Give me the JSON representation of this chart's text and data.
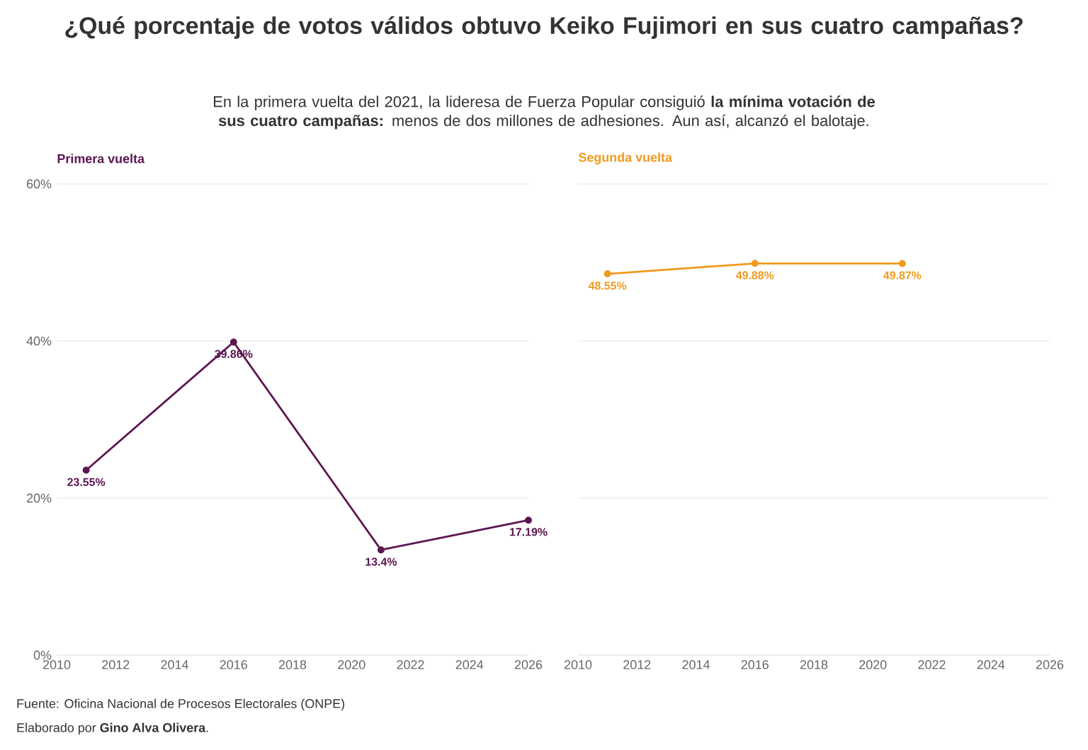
{
  "chart_data": [
    {
      "type": "line",
      "title": "¿Qué porcentaje de votos válidos obtuvo Keiko Fujimori en sus cuatro campañas?",
      "subtitle": "En la primera vuelta del 2021, la lideresa de Fuerza Popular consiguió **la mínima votación de sus cuatro campañas:** menos de dos millones de adhesiones. Aun así, alcanzó el balotaje.",
      "annotations": [
        "Fuente: Oficina Nacional de Procesos Electorales (ONPE)",
        "Elaborado por **Gino Alva Olivera**."
      ],
      "xlim": [
        2010,
        2026
      ],
      "xticks": [
        2010,
        2012,
        2014,
        2016,
        2018,
        2020,
        2022,
        2024,
        2026
      ],
      "ylim": [
        0,
        60
      ],
      "yticks": [
        {
          "value": 0,
          "label": "0%"
        },
        {
          "value": 20,
          "label": "20%"
        },
        {
          "value": 40,
          "label": "40%"
        },
        {
          "value": 60,
          "label": "60%"
        }
      ],
      "grid": "y",
      "marker": "circle",
      "line_style": "solid",
      "series": [
        {
          "name": "Primera vuelta",
          "color": "#5b1650",
          "x": [
            2011,
            2016,
            2021,
            2026
          ],
          "values": [
            23.55,
            39.86,
            13.4,
            17.19
          ],
          "value_labels": [
            "23.55%",
            "39.86%",
            "13.4%",
            "17.19%"
          ]
        }
      ]
    },
    {
      "type": "line",
      "xlim": [
        2010,
        2026
      ],
      "xticks": [
        2010,
        2012,
        2014,
        2016,
        2018,
        2020,
        2022,
        2024,
        2026
      ],
      "ylim": [
        0,
        60
      ],
      "yticks": [
        0,
        20,
        40,
        60
      ],
      "grid": "y",
      "tick_labels": "x",
      "marker": "circle",
      "line_style": "solid",
      "series": [
        {
          "name": "Segunda vuelta",
          "color": "#f09a1e",
          "x": [
            2011,
            2016,
            2021
          ],
          "values": [
            48.55,
            49.88,
            49.87
          ],
          "value_labels": [
            "48.55%",
            "49.88%",
            "49.87%"
          ]
        }
      ]
    }
  ]
}
